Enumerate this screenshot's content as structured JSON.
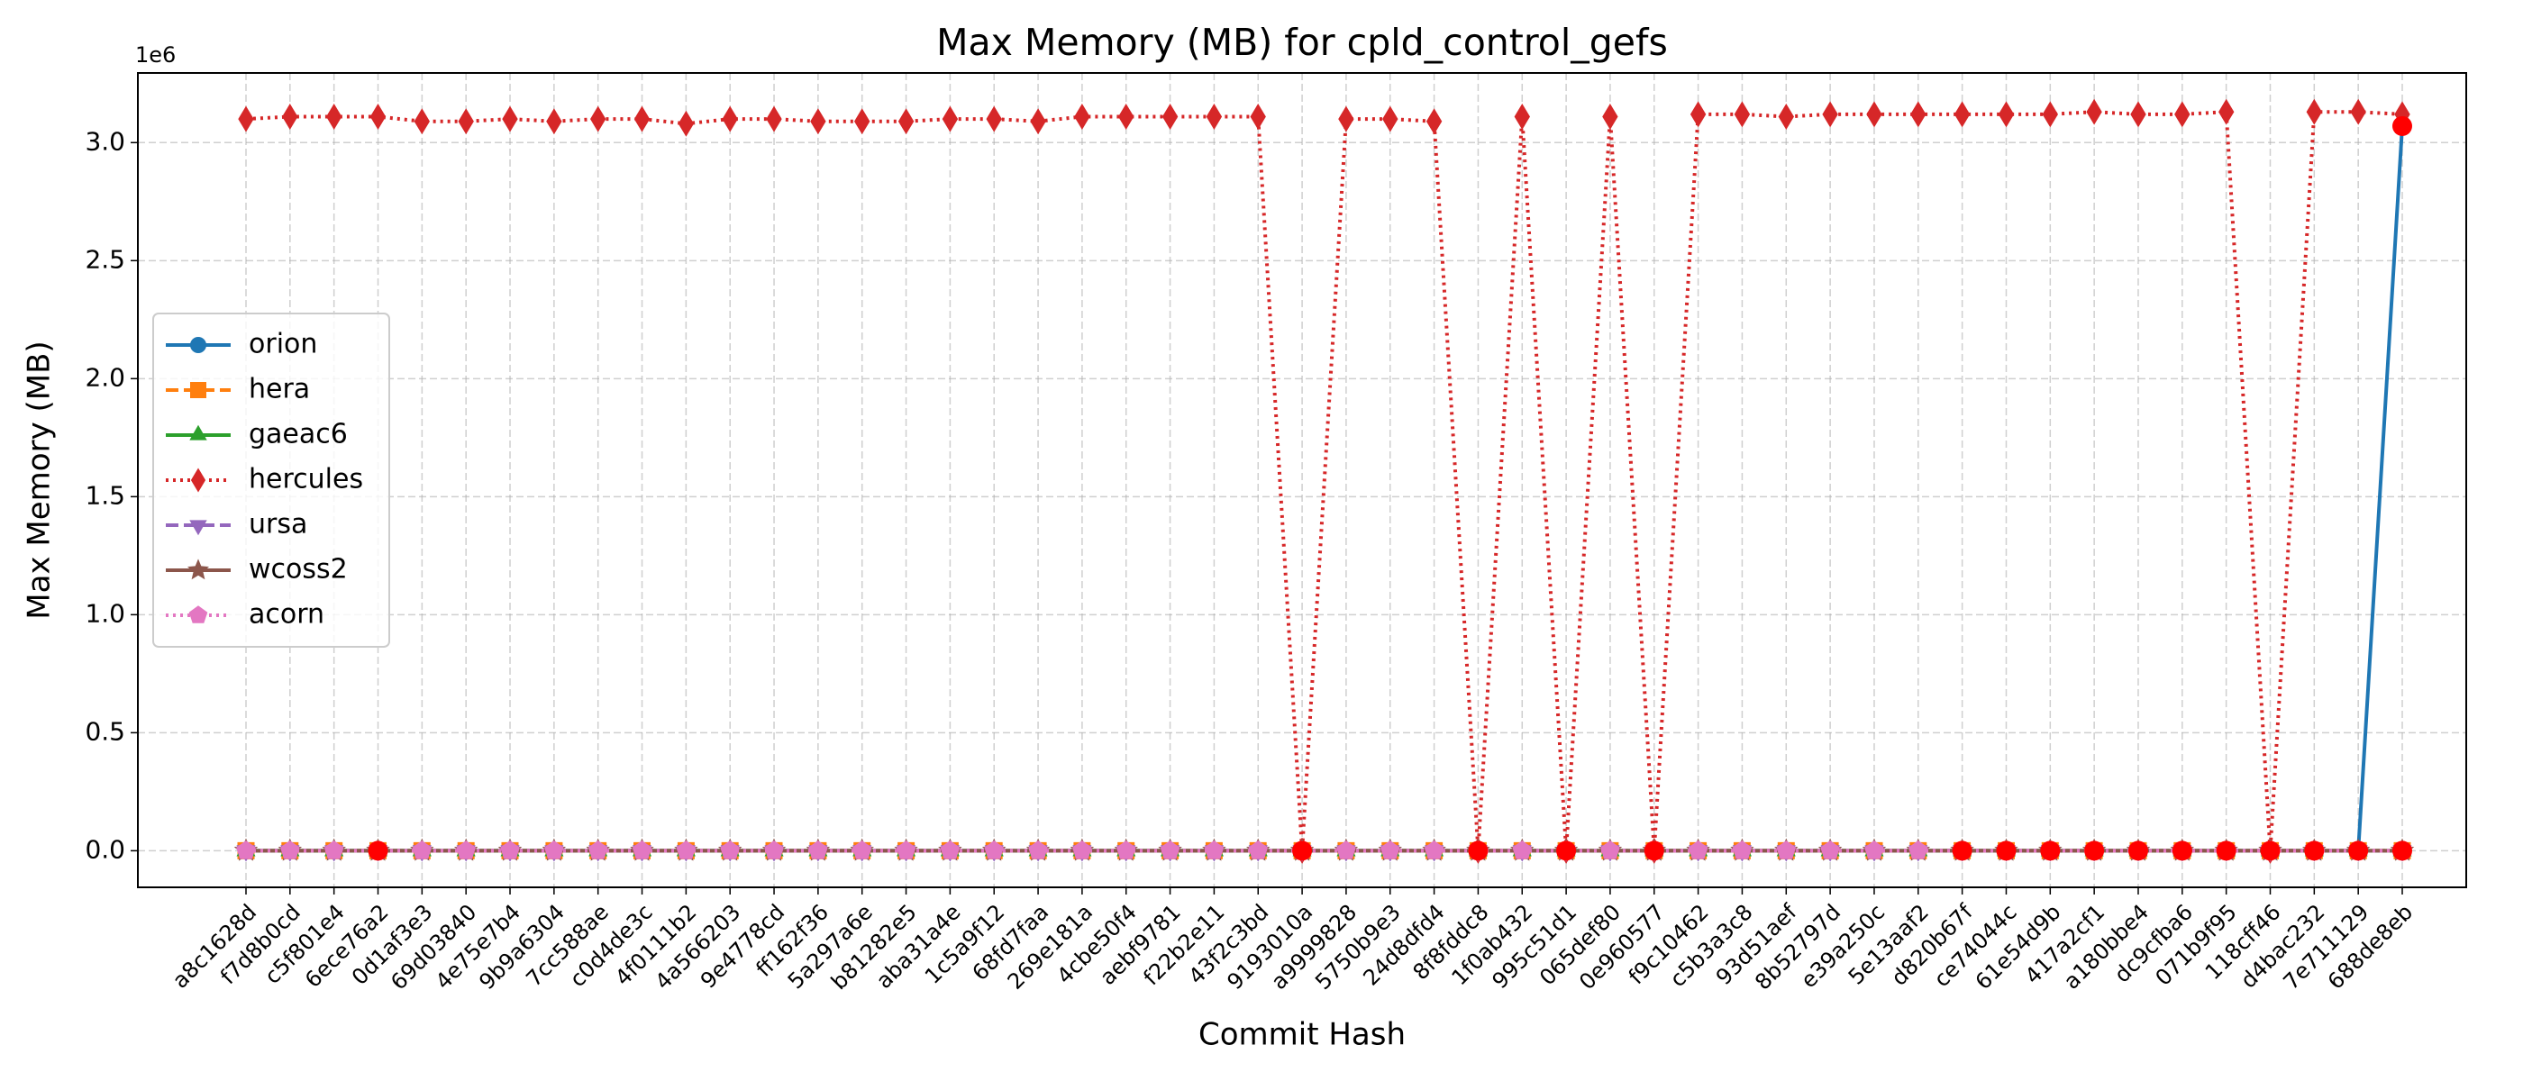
{
  "chart_data": {
    "type": "line",
    "title": "Max Memory (MB) for cpld_control_gefs",
    "xlabel": "Commit Hash",
    "ylabel": "Max Memory (MB)",
    "y_offset_label": "1e6",
    "categories": [
      "a8c1628d",
      "f7d8b0cd",
      "c5f801e4",
      "6ece76a2",
      "0d1af3e3",
      "69d03840",
      "4e75e7b4",
      "9b9a6304",
      "7cc588ae",
      "c0d4de3c",
      "4f0111b2",
      "4a566203",
      "9e4778cd",
      "ff162f36",
      "5a297a6e",
      "b81282e5",
      "aba31a4e",
      "1c5a9f12",
      "68fd7faa",
      "269e181a",
      "4cbe50f4",
      "aebf9781",
      "f22b2e11",
      "43f2c3bd",
      "9193010a",
      "a9999828",
      "5750b9e3",
      "24d8dfd4",
      "8f8fddc8",
      "1f0ab432",
      "995c51d1",
      "065def80",
      "0e960577",
      "f9c10462",
      "c5b3a3c8",
      "93d51aef",
      "8b52797d",
      "e39a250c",
      "5e13aaf2",
      "d820b67f",
      "ce74044c",
      "61e54d9b",
      "417a2cf1",
      "a180bbe4",
      "dc9cfba6",
      "071b9f95",
      "118cff46",
      "d4bac232",
      "7e711129",
      "688de8eb"
    ],
    "ylim": [
      -155000,
      3295000
    ],
    "yticks": [
      {
        "value": 0,
        "label": "0.0"
      },
      {
        "value": 500000,
        "label": "0.5"
      },
      {
        "value": 1000000,
        "label": "1.0"
      },
      {
        "value": 1500000,
        "label": "1.5"
      },
      {
        "value": 2000000,
        "label": "2.0"
      },
      {
        "value": 2500000,
        "label": "2.5"
      },
      {
        "value": 3000000,
        "label": "3.0"
      }
    ],
    "grid": true,
    "legend": "center left",
    "series": [
      {
        "name": "orion",
        "color": "#1f77b4",
        "linestyle": "solid",
        "marker": "circle",
        "values": [
          0,
          0,
          0,
          0,
          0,
          0,
          0,
          0,
          0,
          0,
          0,
          0,
          0,
          0,
          0,
          0,
          0,
          0,
          0,
          0,
          0,
          0,
          0,
          0,
          0,
          0,
          0,
          0,
          0,
          0,
          0,
          0,
          0,
          0,
          0,
          0,
          0,
          0,
          0,
          0,
          0,
          0,
          0,
          0,
          0,
          0,
          0,
          0,
          0,
          3070000
        ]
      },
      {
        "name": "hera",
        "color": "#ff7f0e",
        "linestyle": "dashed",
        "marker": "square",
        "values": [
          0,
          0,
          0,
          0,
          0,
          0,
          0,
          0,
          0,
          0,
          0,
          0,
          0,
          0,
          0,
          0,
          0,
          0,
          0,
          0,
          0,
          0,
          0,
          0,
          0,
          0,
          0,
          0,
          0,
          0,
          0,
          0,
          0,
          0,
          0,
          0,
          0,
          0,
          0,
          0,
          0,
          0,
          0,
          0,
          0,
          0,
          0,
          0,
          0,
          0
        ]
      },
      {
        "name": "gaeac6",
        "color": "#2ca02c",
        "linestyle": "solid",
        "marker": "triangle-up",
        "values": [
          0,
          0,
          0,
          0,
          0,
          0,
          0,
          0,
          0,
          0,
          0,
          0,
          0,
          0,
          0,
          0,
          0,
          0,
          0,
          0,
          0,
          0,
          0,
          0,
          0,
          0,
          0,
          0,
          0,
          0,
          0,
          0,
          0,
          0,
          0,
          0,
          0,
          0,
          0,
          0,
          0,
          0,
          0,
          0,
          0,
          0,
          0,
          0,
          0,
          0
        ]
      },
      {
        "name": "hercules",
        "color": "#d62728",
        "linestyle": "dotted",
        "marker": "diamond",
        "values": [
          3100000,
          3110000,
          3110000,
          3110000,
          3090000,
          3090000,
          3100000,
          3090000,
          3100000,
          3100000,
          3080000,
          3100000,
          3100000,
          3090000,
          3090000,
          3090000,
          3100000,
          3100000,
          3090000,
          3110000,
          3110000,
          3110000,
          3110000,
          3110000,
          0,
          3100000,
          3100000,
          3090000,
          0,
          3110000,
          0,
          3110000,
          0,
          3120000,
          3120000,
          3110000,
          3120000,
          3120000,
          3120000,
          3120000,
          3120000,
          3120000,
          3130000,
          3120000,
          3120000,
          3130000,
          0,
          3130000,
          3130000,
          3120000
        ]
      },
      {
        "name": "ursa",
        "color": "#9467bd",
        "linestyle": "dashed",
        "marker": "triangle-down",
        "values": [
          0,
          0,
          0,
          0,
          0,
          0,
          0,
          0,
          0,
          0,
          0,
          0,
          0,
          0,
          0,
          0,
          0,
          0,
          0,
          0,
          0,
          0,
          0,
          0,
          0,
          0,
          0,
          0,
          0,
          0,
          0,
          0,
          0,
          0,
          0,
          0,
          0,
          0,
          0,
          0,
          0,
          0,
          0,
          0,
          0,
          0,
          0,
          0,
          0,
          0
        ]
      },
      {
        "name": "wcoss2",
        "color": "#8c564b",
        "linestyle": "solid",
        "marker": "star",
        "values": [
          0,
          0,
          0,
          0,
          0,
          0,
          0,
          0,
          0,
          0,
          0,
          0,
          0,
          0,
          0,
          0,
          0,
          0,
          0,
          0,
          0,
          0,
          0,
          0,
          0,
          0,
          0,
          0,
          0,
          0,
          0,
          0,
          0,
          0,
          0,
          0,
          0,
          0,
          0,
          0,
          0,
          0,
          0,
          0,
          0,
          0,
          0,
          0,
          0,
          0
        ]
      },
      {
        "name": "acorn",
        "color": "#e377c2",
        "linestyle": "dotted",
        "marker": "pentagon",
        "values": [
          0,
          0,
          0,
          0,
          0,
          0,
          0,
          0,
          0,
          0,
          0,
          0,
          0,
          0,
          0,
          0,
          0,
          0,
          0,
          0,
          0,
          0,
          0,
          0,
          0,
          0,
          0,
          0,
          0,
          0,
          0,
          0,
          0,
          0,
          0,
          0,
          0,
          0,
          0,
          0,
          0,
          0,
          0,
          0,
          0,
          0,
          0,
          0,
          0,
          0
        ]
      }
    ],
    "highlights": [
      {
        "color": "#ff0000",
        "values": [
          null,
          null,
          null,
          0,
          null,
          null,
          null,
          null,
          null,
          null,
          null,
          null,
          null,
          null,
          null,
          null,
          null,
          null,
          null,
          null,
          null,
          null,
          null,
          null,
          0,
          null,
          null,
          null,
          0,
          null,
          0,
          null,
          0,
          null,
          null,
          null,
          null,
          null,
          null,
          0,
          0,
          0,
          0,
          0,
          0,
          0,
          0,
          0,
          0,
          0
        ]
      },
      {
        "color": "#ff0000",
        "values": [
          null,
          null,
          null,
          null,
          null,
          null,
          null,
          null,
          null,
          null,
          null,
          null,
          null,
          null,
          null,
          null,
          null,
          null,
          null,
          null,
          null,
          null,
          null,
          null,
          null,
          null,
          null,
          null,
          null,
          null,
          null,
          null,
          null,
          null,
          null,
          null,
          null,
          null,
          null,
          null,
          null,
          null,
          null,
          null,
          null,
          null,
          null,
          null,
          null,
          3070000
        ]
      }
    ]
  }
}
